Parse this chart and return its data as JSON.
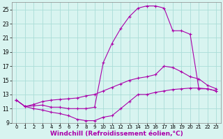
{
  "background_color": "#d8f4f0",
  "grid_color": "#aaddd8",
  "line_color": "#aa00aa",
  "xlabel": "Windchill (Refroidissement éolien,°C)",
  "xlabel_fontsize": 6.5,
  "xlim": [
    -0.5,
    23.5
  ],
  "ylim": [
    9,
    26
  ],
  "yticks": [
    9,
    11,
    13,
    15,
    17,
    19,
    21,
    23,
    25
  ],
  "xticks": [
    0,
    1,
    2,
    3,
    4,
    5,
    6,
    7,
    8,
    9,
    10,
    11,
    12,
    13,
    14,
    15,
    16,
    17,
    18,
    19,
    20,
    21,
    22,
    23
  ],
  "curve_high_x": [
    0,
    1,
    2,
    3,
    4,
    5,
    6,
    7,
    8,
    9,
    10,
    11,
    12,
    13,
    14,
    15,
    16,
    17,
    18,
    19,
    20,
    21,
    22,
    23
  ],
  "curve_high_y": [
    12.2,
    11.3,
    11.4,
    11.5,
    11.2,
    11.2,
    11.0,
    11.0,
    11.0,
    11.2,
    17.5,
    20.2,
    22.3,
    24.0,
    25.2,
    25.5,
    25.5,
    25.2,
    22.0,
    22.0,
    21.5,
    13.8,
    13.8,
    13.5
  ],
  "curve_mid_x": [
    0,
    1,
    2,
    3,
    4,
    5,
    6,
    7,
    8,
    9,
    10,
    11,
    12,
    13,
    14,
    15,
    16,
    17,
    18,
    19,
    20,
    21,
    22,
    23
  ],
  "curve_mid_y": [
    12.2,
    11.3,
    11.6,
    12.0,
    12.2,
    12.3,
    12.4,
    12.5,
    12.8,
    13.0,
    13.5,
    14.0,
    14.5,
    15.0,
    15.3,
    15.5,
    15.8,
    17.0,
    16.8,
    16.2,
    15.5,
    15.2,
    14.3,
    13.8
  ],
  "curve_low_x": [
    0,
    1,
    2,
    3,
    4,
    5,
    6,
    7,
    8,
    9,
    10,
    11,
    12,
    13,
    14,
    15,
    16,
    17,
    18,
    19,
    20,
    21,
    22,
    23
  ],
  "curve_low_y": [
    12.2,
    11.3,
    11.0,
    10.8,
    10.5,
    10.3,
    10.0,
    9.5,
    9.3,
    9.3,
    9.8,
    10.0,
    11.0,
    12.0,
    13.0,
    13.0,
    13.3,
    13.5,
    13.7,
    13.8,
    13.9,
    13.9,
    13.8,
    13.5
  ]
}
